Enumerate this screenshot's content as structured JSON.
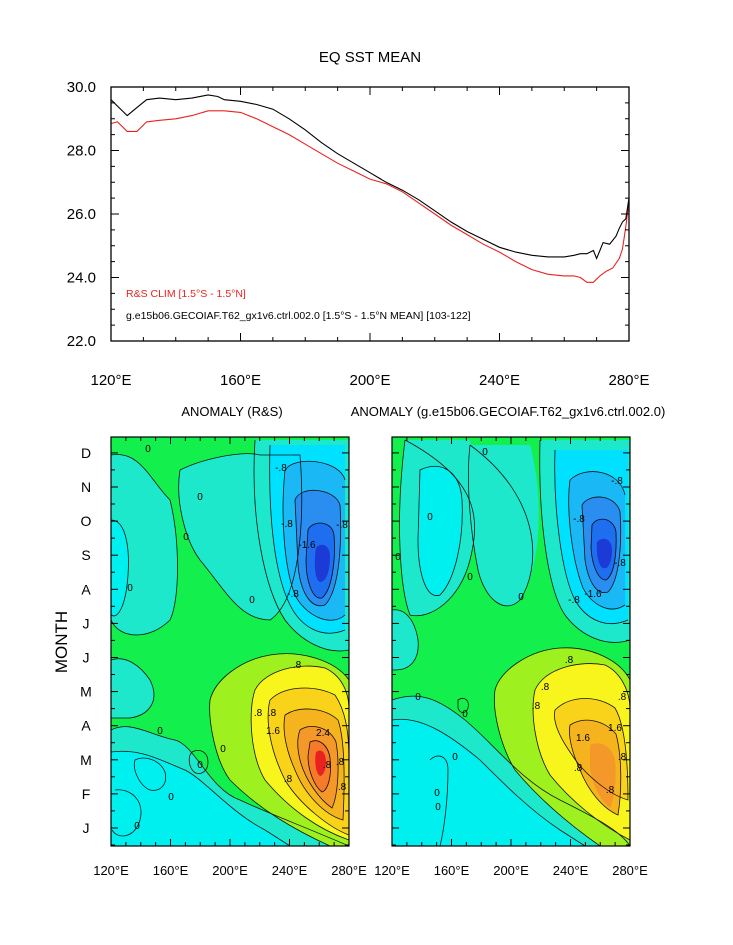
{
  "chart_data": [
    {
      "type": "line",
      "title": "EQ SST MEAN",
      "xlabel": "",
      "ylabel": "",
      "xlim": [
        120,
        280
      ],
      "ylim": [
        22,
        30
      ],
      "xticks": [
        120,
        160,
        200,
        240,
        280
      ],
      "xtick_labels": [
        "120°E",
        "160°E",
        "200°E",
        "240°E",
        "280°E"
      ],
      "yticks": [
        22,
        24,
        26,
        28,
        30
      ],
      "ytick_labels": [
        "22.0",
        "24.0",
        "26.0",
        "28.0",
        "30.0"
      ],
      "grid": false,
      "legend": {
        "placement": "bottom-left",
        "entries": [
          {
            "text": "R&S CLIM [1.5°S - 1.5°N]",
            "color": "#e8231f"
          },
          {
            "text": "g.e15b06.GECOIAF.T62_gx1v6.ctrl.002.0 [1.5°S - 1.5°N MEAN] [103-122]",
            "color": "#000000"
          }
        ]
      },
      "series": [
        {
          "color": "#e8231f",
          "x": [
            120,
            122,
            125,
            128,
            131,
            135,
            140,
            145,
            150,
            155,
            160,
            165,
            170,
            175,
            180,
            185,
            190,
            195,
            200,
            205,
            210,
            215,
            220,
            225,
            230,
            235,
            240,
            245,
            250,
            255,
            260,
            263,
            265,
            267,
            269,
            271,
            273,
            275,
            277,
            278,
            279,
            280
          ],
          "y": [
            28.85,
            28.9,
            28.6,
            28.6,
            28.9,
            28.95,
            29.0,
            29.1,
            29.25,
            29.25,
            29.2,
            29.0,
            28.75,
            28.5,
            28.2,
            27.9,
            27.6,
            27.35,
            27.1,
            26.95,
            26.7,
            26.35,
            26.0,
            25.65,
            25.35,
            25.05,
            24.8,
            24.5,
            24.25,
            24.1,
            24.05,
            24.05,
            24.0,
            23.85,
            23.85,
            24.05,
            24.2,
            24.3,
            24.6,
            24.9,
            25.6,
            26.4
          ]
        },
        {
          "color": "#000000",
          "x": [
            120,
            122,
            125,
            128,
            131,
            135,
            140,
            145,
            150,
            153,
            155,
            160,
            165,
            170,
            175,
            180,
            185,
            190,
            195,
            200,
            205,
            210,
            215,
            220,
            225,
            230,
            235,
            240,
            245,
            250,
            255,
            260,
            263,
            265,
            267,
            269,
            270,
            271,
            272,
            274,
            276,
            277,
            278,
            279,
            280
          ],
          "y": [
            29.6,
            29.4,
            29.1,
            29.35,
            29.6,
            29.65,
            29.6,
            29.65,
            29.75,
            29.7,
            29.6,
            29.55,
            29.45,
            29.3,
            29.0,
            28.65,
            28.25,
            27.9,
            27.6,
            27.3,
            27.0,
            26.75,
            26.45,
            26.1,
            25.75,
            25.45,
            25.2,
            24.95,
            24.8,
            24.7,
            24.65,
            24.65,
            24.7,
            24.75,
            24.75,
            24.85,
            24.6,
            24.85,
            25.1,
            25.05,
            25.3,
            25.55,
            25.75,
            25.85,
            26.5
          ]
        }
      ]
    },
    {
      "type": "heatmap",
      "subtype": "filled-contour",
      "title": "ANOMALY (R&S)",
      "ylabel": "MONTH",
      "xlim": [
        120,
        280
      ],
      "xtick_labels": [
        "120°E",
        "160°E",
        "200°E",
        "240°E",
        "280°E"
      ],
      "ytick_labels": [
        "J",
        "F",
        "M",
        "A",
        "M",
        "J",
        "J",
        "A",
        "S",
        "O",
        "N",
        "D"
      ],
      "contour_labels": [
        "0",
        "0",
        "0",
        "0",
        "0",
        "0",
        "0",
        "0",
        "0",
        "0",
        ".8",
        ".8",
        ".8",
        "1.6",
        "2.4",
        ".8",
        "-.8",
        "-.8",
        "-.8",
        "-1.6",
        "-.8",
        ".8",
        ".8",
        ".8"
      ]
    },
    {
      "type": "heatmap",
      "subtype": "filled-contour",
      "title": "ANOMALY (g.e15b06.GECOIAF.T62_gx1v6.ctrl.002.0)",
      "xlim": [
        120,
        280
      ],
      "xtick_labels": [
        "120°E",
        "160°E",
        "200°E",
        "240°E",
        "280°E"
      ],
      "ytick_labels": [
        "J",
        "F",
        "M",
        "A",
        "M",
        "J",
        "J",
        "A",
        "S",
        "O",
        "N",
        "D"
      ],
      "contour_labels": [
        "0",
        "0",
        "0",
        "0",
        "0",
        "0",
        "0",
        "0",
        "0",
        "0",
        ".8",
        ".8",
        "1.6",
        "1.6",
        ".8",
        "-.8",
        "-.8",
        "-1.6",
        "-.8",
        "-.8",
        ".8",
        ".8",
        ".8",
        ".8"
      ]
    }
  ]
}
